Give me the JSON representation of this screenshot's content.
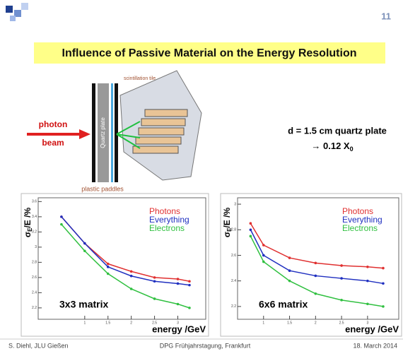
{
  "slide": {
    "page_number": "11",
    "title": "Influence of Passive Material on the Energy Resolution",
    "diagram": {
      "beam_top": "photon",
      "beam_bottom": "beam",
      "plate": "Quartz plate",
      "tile": "scintillation tile",
      "paddles": "plastic paddles"
    },
    "note_line1": "d = 1.5 cm quartz plate",
    "note_line2": "→ 0.12 X",
    "note_line2_sub": "0",
    "footer": {
      "left": "S. Diehl, JLU Gießen",
      "center": "DPG Frühjahrstagung, Frankfurt",
      "right": "18. March 2014"
    }
  },
  "chart_data": [
    {
      "type": "line",
      "ylabel": {
        "symbol": "σ",
        "sub": "E",
        "rest": "/E /%"
      },
      "xlabel": "energy /GeV",
      "annotation": "3x3 matrix",
      "x": [
        0.5,
        1,
        1.5,
        2,
        2.5,
        3,
        3.25
      ],
      "xlim": [
        0,
        3.6
      ],
      "xticks": [
        1,
        1.5,
        2,
        2.5,
        3
      ],
      "ylim": [
        2.05,
        3.65
      ],
      "yticks": [
        2.2,
        2.4,
        2.6,
        2.8,
        3,
        3.2,
        3.4,
        3.6
      ],
      "series": [
        {
          "name": "Photons",
          "color": "#e03030",
          "values": [
            3.4,
            3.05,
            2.78,
            2.68,
            2.6,
            2.58,
            2.55
          ]
        },
        {
          "name": "Everything",
          "color": "#2030c0",
          "values": [
            3.4,
            3.05,
            2.74,
            2.62,
            2.55,
            2.52,
            2.5
          ]
        },
        {
          "name": "Electrons",
          "color": "#30c040",
          "values": [
            3.3,
            2.95,
            2.65,
            2.45,
            2.32,
            2.25,
            2.2
          ]
        }
      ]
    },
    {
      "type": "line",
      "ylabel": {
        "symbol": "σ",
        "sub": "E",
        "rest": "/E /%"
      },
      "xlabel": "energy /GeV",
      "annotation": "6x6 matrix",
      "x": [
        0.75,
        1,
        1.5,
        2,
        2.5,
        3,
        3.3
      ],
      "xlim": [
        0.5,
        3.6
      ],
      "xticks": [
        1,
        1.5,
        2,
        2.5,
        3
      ],
      "ylim": [
        2.1,
        3.05
      ],
      "yticks": [
        2.2,
        2.4,
        2.6,
        2.8,
        3
      ],
      "series": [
        {
          "name": "Photons",
          "color": "#e03030",
          "values": [
            2.85,
            2.68,
            2.58,
            2.54,
            2.52,
            2.51,
            2.5
          ]
        },
        {
          "name": "Everything",
          "color": "#2030c0",
          "values": [
            2.8,
            2.6,
            2.48,
            2.44,
            2.42,
            2.4,
            2.38
          ]
        },
        {
          "name": "Electrons",
          "color": "#30c040",
          "values": [
            2.75,
            2.55,
            2.4,
            2.3,
            2.25,
            2.22,
            2.2
          ]
        }
      ]
    }
  ]
}
